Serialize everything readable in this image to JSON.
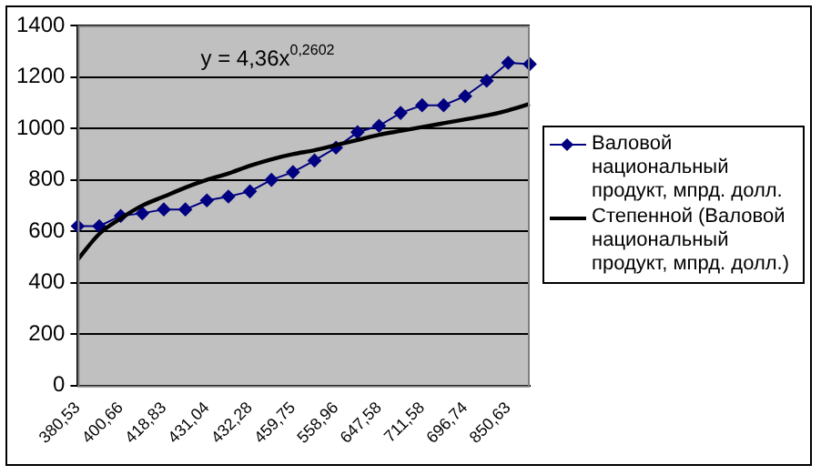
{
  "chart_data": {
    "type": "line",
    "categories": [
      "380,53",
      null,
      "400,66",
      null,
      "418,83",
      null,
      "431,04",
      null,
      "432,28",
      null,
      "459,75",
      null,
      "558,96",
      null,
      "647,58",
      null,
      "711,58",
      null,
      "696,74",
      null,
      "850,63",
      null
    ],
    "series": [
      {
        "name": "Валовой национальный продукт, мпрд. долл.",
        "color": "#000080",
        "marker": "diamond",
        "values": [
          620,
          620,
          660,
          670,
          685,
          685,
          720,
          735,
          755,
          800,
          830,
          875,
          925,
          985,
          1010,
          1060,
          1090,
          1090,
          1125,
          1185,
          1255,
          1250
        ]
      },
      {
        "name": "Степенной (Валовой национальный продукт, мпрд. долл.)",
        "color": "#000000",
        "marker": "none",
        "values": [
          490,
          590,
          650,
          700,
          735,
          770,
          800,
          825,
          855,
          880,
          900,
          915,
          935,
          955,
          975,
          990,
          1005,
          1020,
          1035,
          1050,
          1070,
          1095
        ]
      }
    ],
    "ylim": [
      0,
      1400
    ],
    "yticks": [
      0,
      200,
      400,
      600,
      800,
      1000,
      1200,
      1400
    ],
    "grid": "y",
    "legend": "right",
    "annotations": [
      "y = 4,36x$^{0,2602}$"
    ]
  }
}
